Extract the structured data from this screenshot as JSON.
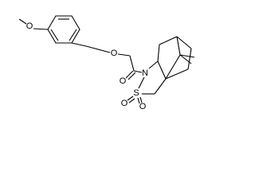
{
  "nodes": [
    {
      "label": "O"
    },
    {
      "label": "O"
    },
    {
      "label": "O"
    },
    {
      "label": "N"
    },
    {
      "label": "S"
    },
    {
      "label": "O"
    },
    {
      "label": "O"
    }
  ]
}
